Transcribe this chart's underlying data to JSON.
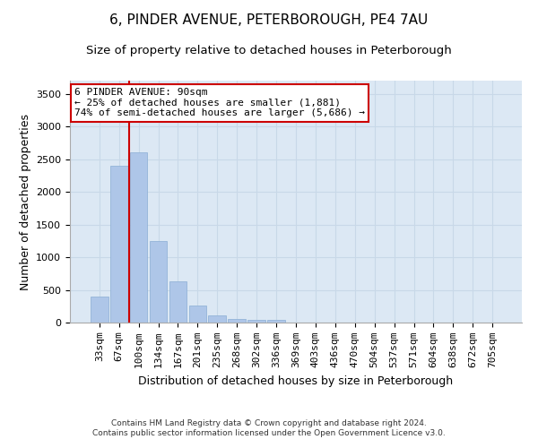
{
  "title": "6, PINDER AVENUE, PETERBOROUGH, PE4 7AU",
  "subtitle": "Size of property relative to detached houses in Peterborough",
  "xlabel": "Distribution of detached houses by size in Peterborough",
  "ylabel": "Number of detached properties",
  "footer_line1": "Contains HM Land Registry data © Crown copyright and database right 2024.",
  "footer_line2": "Contains public sector information licensed under the Open Government Licence v3.0.",
  "categories": [
    "33sqm",
    "67sqm",
    "100sqm",
    "134sqm",
    "167sqm",
    "201sqm",
    "235sqm",
    "268sqm",
    "302sqm",
    "336sqm",
    "369sqm",
    "403sqm",
    "436sqm",
    "470sqm",
    "504sqm",
    "537sqm",
    "571sqm",
    "604sqm",
    "638sqm",
    "672sqm",
    "705sqm"
  ],
  "values": [
    400,
    2400,
    2600,
    1250,
    630,
    255,
    110,
    60,
    45,
    35,
    0,
    0,
    0,
    0,
    0,
    0,
    0,
    0,
    0,
    0,
    0
  ],
  "bar_color": "#aec6e8",
  "bar_edge_color": "#8aadd4",
  "grid_color": "#c8d8e8",
  "background_color": "#dce8f4",
  "annotation_text": "6 PINDER AVENUE: 90sqm\n← 25% of detached houses are smaller (1,881)\n74% of semi-detached houses are larger (5,686) →",
  "annotation_box_color": "#ffffff",
  "annotation_box_edgecolor": "#cc0000",
  "red_line_color": "#cc0000",
  "red_line_x": 1.5,
  "ylim": [
    0,
    3700
  ],
  "yticks": [
    0,
    500,
    1000,
    1500,
    2000,
    2500,
    3000,
    3500
  ],
  "title_fontsize": 11,
  "subtitle_fontsize": 9.5,
  "ylabel_fontsize": 9,
  "xlabel_fontsize": 9,
  "tick_fontsize": 8,
  "annotation_fontsize": 8,
  "footer_fontsize": 6.5
}
